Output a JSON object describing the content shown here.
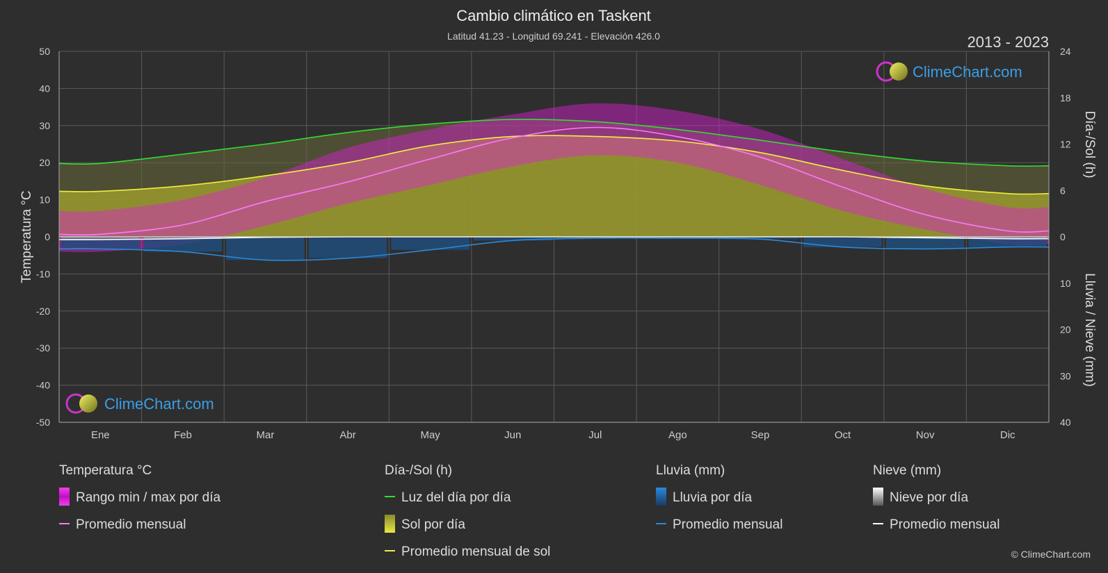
{
  "header": {
    "title": "Cambio climático en Taskent",
    "subtitle": "Latitud 41.23 - Longitud 69.241 - Elevación 426.0",
    "years": "2013 - 2023"
  },
  "brand": {
    "name": "ClimeChart.com",
    "copyright": "© ClimeChart.com"
  },
  "colors": {
    "background": "#2e2e2e",
    "temp_range": "#e020d8",
    "temp_avg": "#ff78ff",
    "daylight": "#33dd33",
    "sunshine": "#c8c83a",
    "sun_avg": "#f0f040",
    "rain": "#2a8ad8",
    "snow": "#bbbbbb",
    "snow_avg": "#ffffff"
  },
  "chart_data": {
    "type": "line",
    "categories": [
      "Ene",
      "Feb",
      "Mar",
      "Abr",
      "May",
      "Jun",
      "Jul",
      "Ago",
      "Sep",
      "Oct",
      "Nov",
      "Dic"
    ],
    "axes": {
      "left": {
        "label": "Temperatura °C",
        "min": -50,
        "max": 50,
        "ticks": [
          50,
          40,
          30,
          20,
          10,
          0,
          -10,
          -20,
          -30,
          -40,
          -50
        ]
      },
      "right_top": {
        "label": "Día-/Sol (h)",
        "min": 0,
        "max": 24,
        "ticks": [
          24,
          18,
          12,
          6,
          0
        ]
      },
      "right_bottom": {
        "label": "Lluvia / Nieve (mm)",
        "min": 0,
        "max": 40,
        "ticks": [
          10,
          20,
          30,
          40
        ]
      }
    },
    "series": [
      {
        "name": "Rango min / max por día",
        "type": "band",
        "axis": "left",
        "min": [
          -4,
          -2,
          3,
          9,
          14,
          19,
          22,
          20,
          14,
          7,
          2,
          -2
        ],
        "max": [
          7,
          10,
          16,
          24,
          29,
          33,
          36,
          34,
          29,
          21,
          13,
          8
        ]
      },
      {
        "name": "Promedio mensual",
        "group": "Temperatura °C",
        "axis": "left",
        "values": [
          0.7,
          3.2,
          9.5,
          14.8,
          21.0,
          26.7,
          29.5,
          27.0,
          21.5,
          13.4,
          6.0,
          1.6
        ]
      },
      {
        "name": "Luz del día por día",
        "axis": "right_top",
        "values": [
          9.5,
          10.7,
          12.0,
          13.5,
          14.6,
          15.2,
          14.9,
          13.9,
          12.5,
          11.0,
          9.8,
          9.2
        ]
      },
      {
        "name": "Sol por día",
        "type": "area",
        "axis": "right_top",
        "values": [
          5.9,
          6.6,
          7.9,
          9.6,
          11.8,
          13.0,
          13.0,
          12.4,
          10.9,
          8.6,
          6.6,
          5.6
        ]
      },
      {
        "name": "Promedio mensual de sol",
        "axis": "right_top",
        "values": [
          5.9,
          6.6,
          7.9,
          9.6,
          11.8,
          13.0,
          13.0,
          12.4,
          10.9,
          8.6,
          6.6,
          5.6
        ]
      },
      {
        "name": "Lluvia por día",
        "type": "bar",
        "axis": "right_bottom",
        "values": [
          2.6,
          3.2,
          5.0,
          4.6,
          2.8,
          0.8,
          0.3,
          0.3,
          0.5,
          2.2,
          2.6,
          2.2
        ]
      },
      {
        "name": "Promedio mensual",
        "group": "Lluvia (mm)",
        "axis": "right_bottom",
        "values": [
          2.6,
          3.2,
          5.0,
          4.6,
          2.8,
          0.8,
          0.3,
          0.3,
          0.5,
          2.2,
          2.6,
          2.2
        ]
      },
      {
        "name": "Nieve por día",
        "type": "bar",
        "axis": "right_bottom",
        "values": [
          0.6,
          0.4,
          0.1,
          0,
          0,
          0,
          0,
          0,
          0,
          0,
          0.2,
          0.4
        ]
      },
      {
        "name": "Promedio mensual",
        "group": "Nieve (mm)",
        "axis": "right_bottom",
        "values": [
          0.6,
          0.4,
          0.1,
          0,
          0,
          0,
          0,
          0,
          0,
          0,
          0.2,
          0.4
        ]
      }
    ],
    "grid": true
  },
  "legend": {
    "groups": [
      {
        "title": "Temperatura °C",
        "items": [
          {
            "label": "Rango min / max por día",
            "kind": "swatch-range"
          },
          {
            "label": "Promedio mensual",
            "kind": "line-temp"
          }
        ]
      },
      {
        "title": "Día-/Sol (h)",
        "items": [
          {
            "label": "Luz del día por día",
            "kind": "line-day"
          },
          {
            "label": "Sol por día",
            "kind": "swatch-sun"
          },
          {
            "label": "Promedio mensual de sol",
            "kind": "line-sun"
          }
        ]
      },
      {
        "title": "Lluvia (mm)",
        "items": [
          {
            "label": "Lluvia por día",
            "kind": "swatch-rain"
          },
          {
            "label": "Promedio mensual",
            "kind": "line-rain"
          }
        ]
      },
      {
        "title": "Nieve (mm)",
        "items": [
          {
            "label": "Nieve por día",
            "kind": "swatch-snow"
          },
          {
            "label": "Promedio mensual",
            "kind": "line-snow"
          }
        ]
      }
    ]
  }
}
